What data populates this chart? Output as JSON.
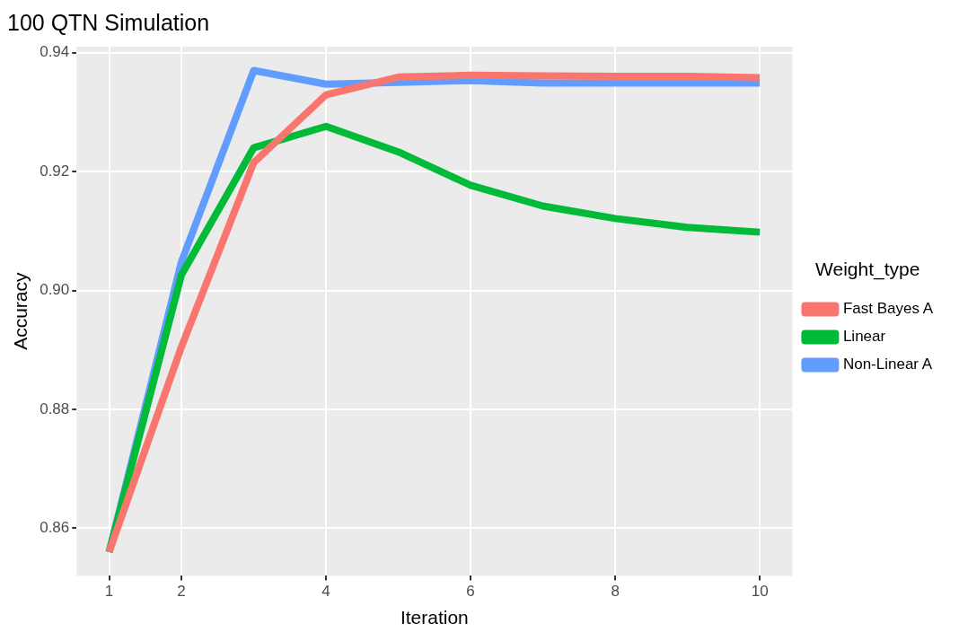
{
  "chart_data": {
    "type": "line",
    "title": "100 QTN Simulation",
    "xlabel": "Iteration",
    "ylabel": "Accuracy",
    "legend_title": "Weight_type",
    "x": [
      1,
      2,
      3,
      4,
      5,
      6,
      7,
      8,
      9,
      10
    ],
    "series": [
      {
        "name": "Fast Bayes A",
        "color": "#f8766d",
        "values": [
          0.856,
          0.8905,
          0.9215,
          0.9329,
          0.9359,
          0.9362,
          0.9361,
          0.936,
          0.936,
          0.9358
        ]
      },
      {
        "name": "Linear",
        "color": "#00ba38",
        "values": [
          0.856,
          0.9026,
          0.924,
          0.9276,
          0.9233,
          0.9177,
          0.9142,
          0.9121,
          0.9106,
          0.9098
        ]
      },
      {
        "name": "Non-Linear A",
        "color": "#619cff",
        "values": [
          0.856,
          0.9048,
          0.937,
          0.9347,
          0.935,
          0.9353,
          0.9349,
          0.9349,
          0.9349,
          0.9349
        ]
      }
    ],
    "xlim": [
      0.55,
      10.45
    ],
    "xticks": [
      1,
      2,
      4,
      6,
      8,
      10
    ],
    "ylim": [
      0.852,
      0.941
    ],
    "yticks": [
      0.86,
      0.88,
      {
        "value": 0.9,
        "label": "0.90"
      },
      0.92,
      0.94
    ],
    "grid": true,
    "legend": "right",
    "marker": "none",
    "line_style": "solid"
  }
}
